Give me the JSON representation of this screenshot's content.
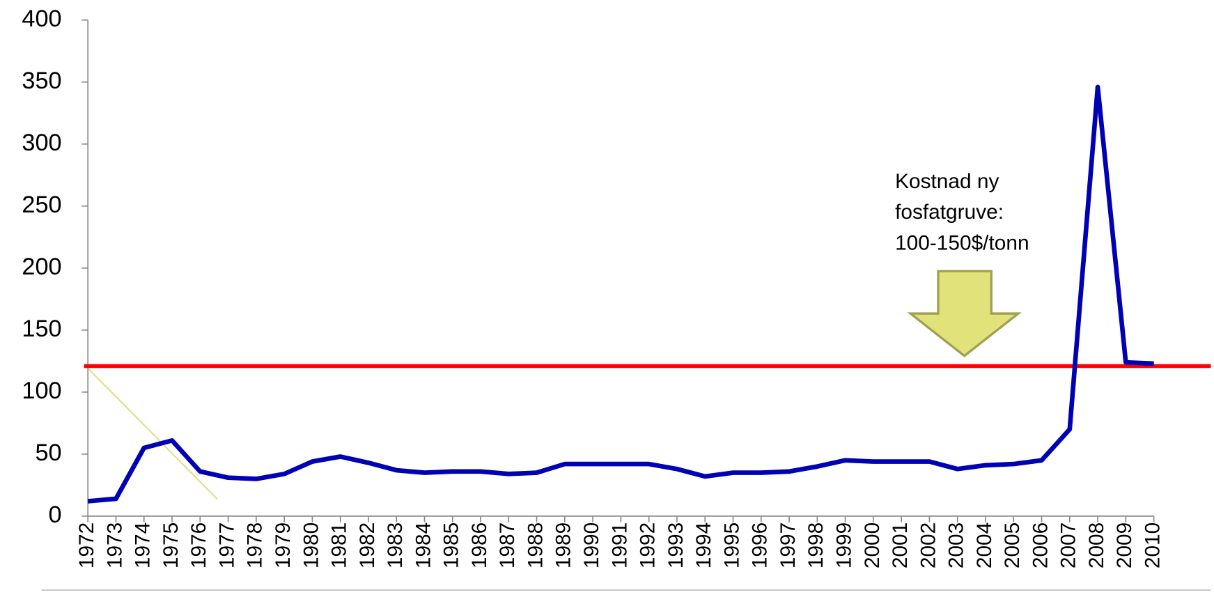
{
  "chart_data": {
    "type": "line",
    "categories": [
      "1972",
      "1973",
      "1974",
      "1975",
      "1976",
      "1977",
      "1978",
      "1979",
      "1980",
      "1981",
      "1982",
      "1983",
      "1984",
      "1985",
      "1986",
      "1987",
      "1988",
      "1989",
      "1990",
      "1991",
      "1992",
      "1993",
      "1994",
      "1995",
      "1996",
      "1997",
      "1998",
      "1999",
      "2000",
      "2001",
      "2002",
      "2003",
      "2004",
      "2005",
      "2006",
      "2007",
      "2008",
      "2009",
      "2010"
    ],
    "series": [
      {
        "color": "#0000b4",
        "values": [
          12,
          14,
          55,
          61,
          36,
          31,
          30,
          34,
          44,
          48,
          43,
          37,
          35,
          36,
          36,
          34,
          35,
          42,
          42,
          42,
          42,
          38,
          32,
          35,
          35,
          36,
          40,
          45,
          44,
          44,
          44,
          38,
          41,
          42,
          45,
          70,
          346,
          124,
          123
        ]
      }
    ],
    "reference_line": {
      "value": 121,
      "color": "#ff0000"
    },
    "annotation": [
      "Kostnad ny",
      "fosfatgruve:",
      "100-150$/tonn"
    ],
    "ylim": [
      0,
      400
    ],
    "yticks": [
      0,
      50,
      100,
      150,
      200,
      250,
      300,
      350,
      400
    ]
  }
}
